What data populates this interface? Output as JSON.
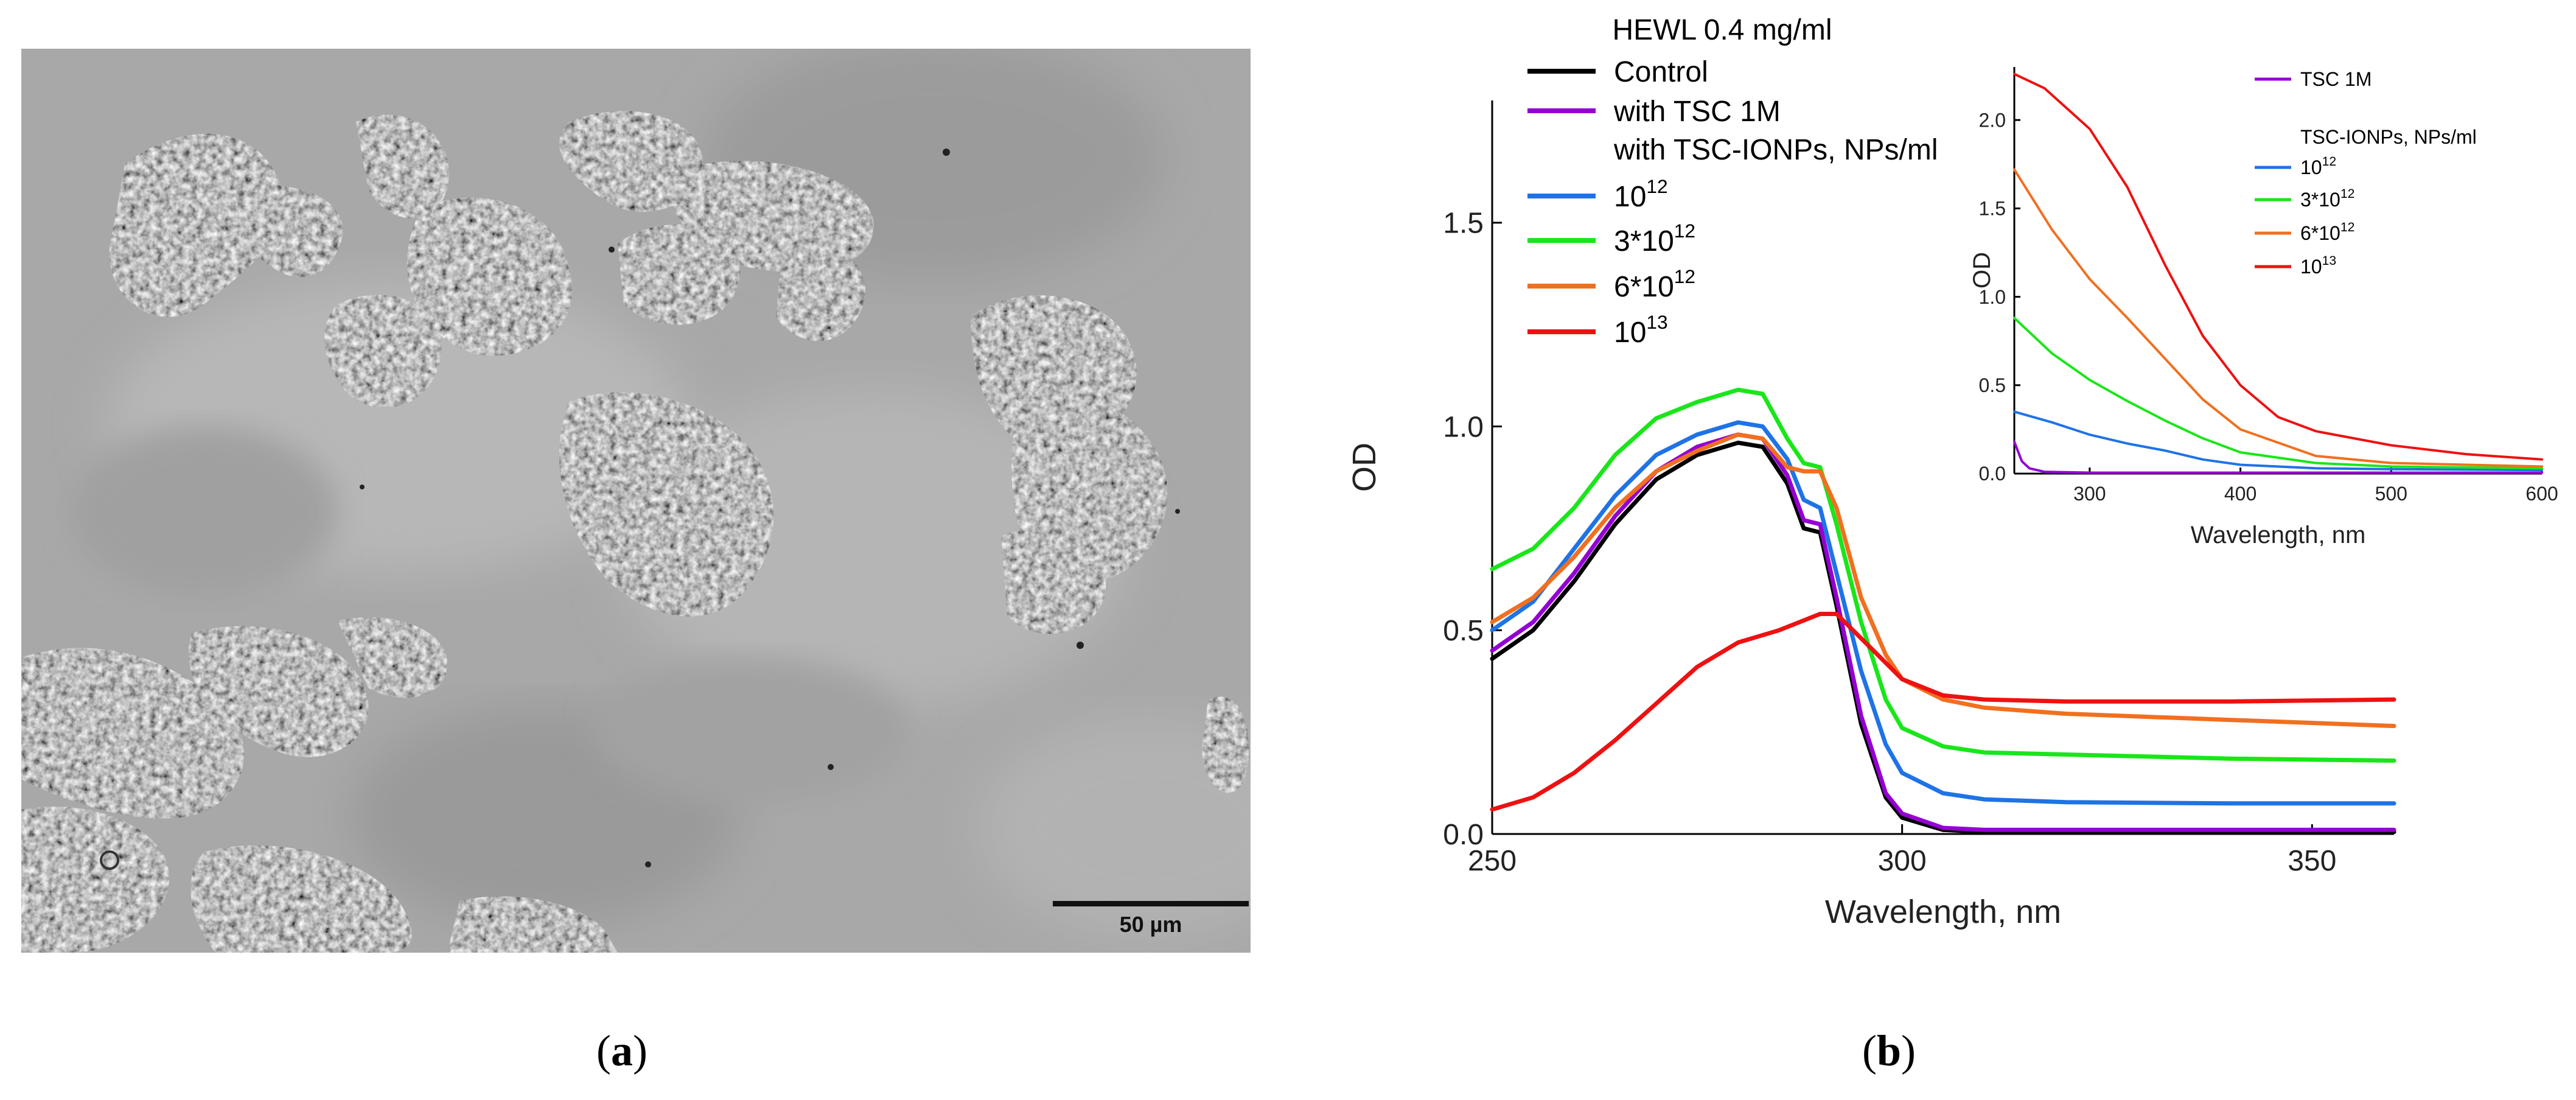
{
  "panel_a": {
    "scale_bar_label": "50 µm",
    "caption_letter": "a"
  },
  "panel_b": {
    "caption_letter": "b"
  },
  "chart_data": [
    {
      "type": "line",
      "title": "HEWL 0.4 mg/ml",
      "xlabel": "Wavelength, nm",
      "ylabel": "OD",
      "xlim": [
        250,
        360
      ],
      "ylim": [
        0,
        1.8
      ],
      "xticks": [
        250,
        300,
        350
      ],
      "yticks": [
        0.0,
        0.5,
        1.0,
        1.5
      ],
      "xtick_labels": [
        "250",
        "300",
        "350"
      ],
      "ytick_labels": [
        "0.0",
        "0.5",
        "1.0",
        "1.5"
      ],
      "legend_subheader": "with TSC-IONPs, NPs/ml",
      "series": [
        {
          "name": "Control",
          "legend_base": "Control",
          "legend_sup": "",
          "color": "#000000",
          "points": [
            [
              250,
              0.43
            ],
            [
              255,
              0.5
            ],
            [
              260,
              0.62
            ],
            [
              265,
              0.76
            ],
            [
              270,
              0.87
            ],
            [
              275,
              0.93
            ],
            [
              280,
              0.96
            ],
            [
              283,
              0.95
            ],
            [
              286,
              0.86
            ],
            [
              288,
              0.75
            ],
            [
              290,
              0.74
            ],
            [
              292,
              0.56
            ],
            [
              295,
              0.27
            ],
            [
              298,
              0.09
            ],
            [
              300,
              0.04
            ],
            [
              305,
              0.01
            ],
            [
              310,
              0.005
            ],
            [
              320,
              0.005
            ],
            [
              360,
              0.005
            ]
          ]
        },
        {
          "name": "with TSC 1M",
          "legend_base": "with TSC 1M",
          "legend_sup": "",
          "color": "#9400d3",
          "points": [
            [
              250,
              0.45
            ],
            [
              255,
              0.52
            ],
            [
              260,
              0.64
            ],
            [
              265,
              0.78
            ],
            [
              270,
              0.89
            ],
            [
              275,
              0.95
            ],
            [
              280,
              0.98
            ],
            [
              283,
              0.97
            ],
            [
              286,
              0.88
            ],
            [
              288,
              0.77
            ],
            [
              290,
              0.76
            ],
            [
              292,
              0.58
            ],
            [
              295,
              0.29
            ],
            [
              298,
              0.1
            ],
            [
              300,
              0.05
            ],
            [
              305,
              0.015
            ],
            [
              310,
              0.01
            ],
            [
              320,
              0.01
            ],
            [
              360,
              0.01
            ]
          ]
        },
        {
          "name": "10^12",
          "legend_base": "10",
          "legend_sup": "12",
          "color": "#1e73e6",
          "points": [
            [
              250,
              0.5
            ],
            [
              255,
              0.57
            ],
            [
              260,
              0.7
            ],
            [
              265,
              0.83
            ],
            [
              270,
              0.93
            ],
            [
              275,
              0.98
            ],
            [
              280,
              1.01
            ],
            [
              283,
              1.0
            ],
            [
              286,
              0.92
            ],
            [
              288,
              0.82
            ],
            [
              290,
              0.8
            ],
            [
              292,
              0.64
            ],
            [
              295,
              0.4
            ],
            [
              298,
              0.22
            ],
            [
              300,
              0.15
            ],
            [
              305,
              0.1
            ],
            [
              310,
              0.085
            ],
            [
              320,
              0.078
            ],
            [
              340,
              0.075
            ],
            [
              360,
              0.075
            ]
          ]
        },
        {
          "name": "3*10^12",
          "legend_base": "3*10",
          "legend_sup": "12",
          "color": "#19e619",
          "points": [
            [
              250,
              0.65
            ],
            [
              255,
              0.7
            ],
            [
              260,
              0.8
            ],
            [
              265,
              0.93
            ],
            [
              270,
              1.02
            ],
            [
              275,
              1.06
            ],
            [
              280,
              1.09
            ],
            [
              283,
              1.08
            ],
            [
              286,
              0.97
            ],
            [
              288,
              0.91
            ],
            [
              290,
              0.9
            ],
            [
              292,
              0.76
            ],
            [
              295,
              0.52
            ],
            [
              298,
              0.33
            ],
            [
              300,
              0.26
            ],
            [
              305,
              0.215
            ],
            [
              310,
              0.2
            ],
            [
              320,
              0.195
            ],
            [
              340,
              0.185
            ],
            [
              360,
              0.18
            ]
          ]
        },
        {
          "name": "6*10^12",
          "legend_base": "6*10",
          "legend_sup": "12",
          "color": "#f07020",
          "points": [
            [
              250,
              0.52
            ],
            [
              255,
              0.58
            ],
            [
              260,
              0.68
            ],
            [
              265,
              0.8
            ],
            [
              270,
              0.89
            ],
            [
              275,
              0.94
            ],
            [
              280,
              0.98
            ],
            [
              283,
              0.97
            ],
            [
              286,
              0.9
            ],
            [
              288,
              0.89
            ],
            [
              290,
              0.89
            ],
            [
              292,
              0.8
            ],
            [
              295,
              0.58
            ],
            [
              298,
              0.44
            ],
            [
              300,
              0.38
            ],
            [
              305,
              0.33
            ],
            [
              310,
              0.31
            ],
            [
              320,
              0.295
            ],
            [
              340,
              0.28
            ],
            [
              360,
              0.265
            ]
          ]
        },
        {
          "name": "10^13",
          "legend_base": "10",
          "legend_sup": "13",
          "color": "#ee1111",
          "points": [
            [
              250,
              0.06
            ],
            [
              255,
              0.09
            ],
            [
              260,
              0.15
            ],
            [
              265,
              0.23
            ],
            [
              270,
              0.32
            ],
            [
              275,
              0.41
            ],
            [
              280,
              0.47
            ],
            [
              285,
              0.5
            ],
            [
              290,
              0.54
            ],
            [
              292,
              0.54
            ],
            [
              294,
              0.5
            ],
            [
              297,
              0.44
            ],
            [
              300,
              0.38
            ],
            [
              305,
              0.34
            ],
            [
              310,
              0.33
            ],
            [
              320,
              0.325
            ],
            [
              340,
              0.325
            ],
            [
              360,
              0.33
            ]
          ]
        }
      ]
    },
    {
      "type": "line",
      "title": "",
      "xlabel": "Wavelength, nm",
      "ylabel": "OD",
      "xlim": [
        250,
        600
      ],
      "ylim": [
        0,
        2.3
      ],
      "xticks": [
        300,
        400,
        500,
        600
      ],
      "yticks": [
        0.0,
        0.5,
        1.0,
        1.5,
        2.0
      ],
      "xtick_labels": [
        "300",
        "400",
        "500",
        "600"
      ],
      "ytick_labels": [
        "0.0",
        "0.5",
        "1.0",
        "1.5",
        "2.0"
      ],
      "legend_subheader": "TSC-IONPs, NPs/ml",
      "series": [
        {
          "name": "TSC 1M",
          "legend_base": "TSC 1M",
          "legend_sup": "",
          "color": "#9400d3",
          "points": [
            [
              250,
              0.18
            ],
            [
              255,
              0.07
            ],
            [
              260,
              0.03
            ],
            [
              270,
              0.01
            ],
            [
              300,
              0.005
            ],
            [
              600,
              0.005
            ]
          ]
        },
        {
          "name": "10^12",
          "legend_base": "10",
          "legend_sup": "12",
          "color": "#1e73e6",
          "points": [
            [
              250,
              0.35
            ],
            [
              275,
              0.29
            ],
            [
              300,
              0.22
            ],
            [
              325,
              0.17
            ],
            [
              350,
              0.13
            ],
            [
              375,
              0.08
            ],
            [
              400,
              0.05
            ],
            [
              450,
              0.03
            ],
            [
              500,
              0.025
            ],
            [
              600,
              0.02
            ]
          ]
        },
        {
          "name": "3*10^12",
          "legend_base": "3*10",
          "legend_sup": "12",
          "color": "#19e619",
          "points": [
            [
              250,
              0.88
            ],
            [
              275,
              0.68
            ],
            [
              300,
              0.53
            ],
            [
              325,
              0.41
            ],
            [
              350,
              0.3
            ],
            [
              375,
              0.2
            ],
            [
              400,
              0.12
            ],
            [
              450,
              0.06
            ],
            [
              500,
              0.04
            ],
            [
              600,
              0.03
            ]
          ]
        },
        {
          "name": "6*10^12",
          "legend_base": "6*10",
          "legend_sup": "12",
          "color": "#f07020",
          "points": [
            [
              250,
              1.72
            ],
            [
              275,
              1.38
            ],
            [
              300,
              1.1
            ],
            [
              325,
              0.88
            ],
            [
              350,
              0.65
            ],
            [
              375,
              0.42
            ],
            [
              400,
              0.25
            ],
            [
              450,
              0.1
            ],
            [
              500,
              0.06
            ],
            [
              600,
              0.04
            ]
          ]
        },
        {
          "name": "10^13",
          "legend_base": "10",
          "legend_sup": "13",
          "color": "#ee1111",
          "points": [
            [
              250,
              2.26
            ],
            [
              270,
              2.18
            ],
            [
              300,
              1.95
            ],
            [
              325,
              1.62
            ],
            [
              350,
              1.18
            ],
            [
              375,
              0.78
            ],
            [
              400,
              0.5
            ],
            [
              425,
              0.32
            ],
            [
              450,
              0.24
            ],
            [
              500,
              0.16
            ],
            [
              550,
              0.11
            ],
            [
              600,
              0.08
            ]
          ]
        }
      ]
    }
  ]
}
